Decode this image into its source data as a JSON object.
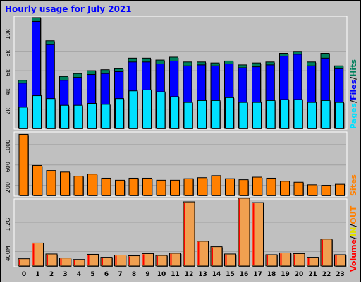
{
  "title": "Hourly usage for July 2021",
  "hours": [
    "0",
    "1",
    "2",
    "3",
    "4",
    "5",
    "6",
    "7",
    "8",
    "9",
    "10",
    "11",
    "12",
    "13",
    "14",
    "15",
    "16",
    "17",
    "18",
    "19",
    "20",
    "21",
    "22",
    "23"
  ],
  "colors": {
    "hits": "#00805c",
    "files": "#0000ff",
    "pages": "#00e0ff",
    "visits": "#ff8000",
    "sites": "#ff8000",
    "kbytes": "#ff0000",
    "in": "#e0e000",
    "out": "#ff8000",
    "volume_bar": "#f0a050",
    "title_text": "#0000ff"
  },
  "chart_data": [
    {
      "type": "bar",
      "title": "Hits / Files / Pages",
      "legend": [
        "Pages",
        "Files",
        "Hits"
      ],
      "yticks": [
        "2k",
        "4k",
        "6k",
        "8k",
        "10k"
      ],
      "ylim": [
        0,
        11500
      ],
      "series": [
        {
          "name": "Hits",
          "values": [
            5000,
            11500,
            9100,
            5400,
            5700,
            6000,
            6100,
            6200,
            7300,
            7300,
            7100,
            7400,
            6900,
            6900,
            6800,
            7000,
            6600,
            6800,
            6900,
            7800,
            8000,
            6900,
            7800,
            6500
          ]
        },
        {
          "name": "Files",
          "values": [
            4700,
            11100,
            8700,
            5000,
            5300,
            5600,
            5700,
            5900,
            6900,
            6900,
            6700,
            7000,
            6500,
            6600,
            6500,
            6700,
            6300,
            6400,
            6600,
            7500,
            7700,
            6500,
            7300,
            6200
          ]
        },
        {
          "name": "Pages",
          "values": [
            2200,
            3400,
            3100,
            2400,
            2400,
            2600,
            2500,
            3100,
            3900,
            4000,
            3800,
            3300,
            2700,
            2900,
            2900,
            3200,
            2700,
            2700,
            2900,
            3000,
            3000,
            2700,
            2900,
            2700
          ]
        }
      ]
    },
    {
      "type": "bar",
      "title": "Sites",
      "legend": [
        "Sites"
      ],
      "yticks": [
        "200",
        "600",
        "1000"
      ],
      "ylim": [
        0,
        1220
      ],
      "series": [
        {
          "name": "Sites",
          "values": [
            1200,
            590,
            490,
            460,
            380,
            420,
            340,
            300,
            340,
            340,
            300,
            300,
            330,
            350,
            390,
            330,
            310,
            360,
            340,
            280,
            260,
            210,
            200,
            220
          ]
        }
      ]
    },
    {
      "type": "bar",
      "title": "Volume",
      "legend": [
        "Volume",
        "IN",
        "OUT"
      ],
      "yticks": [
        "400M",
        "1.2G"
      ],
      "ylim": [
        0,
        1800
      ],
      "series": [
        {
          "name": "Volume",
          "values": [
            200,
            630,
            330,
            220,
            180,
            320,
            240,
            300,
            280,
            340,
            290,
            350,
            1760,
            680,
            530,
            330,
            1860,
            1740,
            310,
            360,
            340,
            240,
            740,
            310
          ]
        }
      ]
    }
  ]
}
